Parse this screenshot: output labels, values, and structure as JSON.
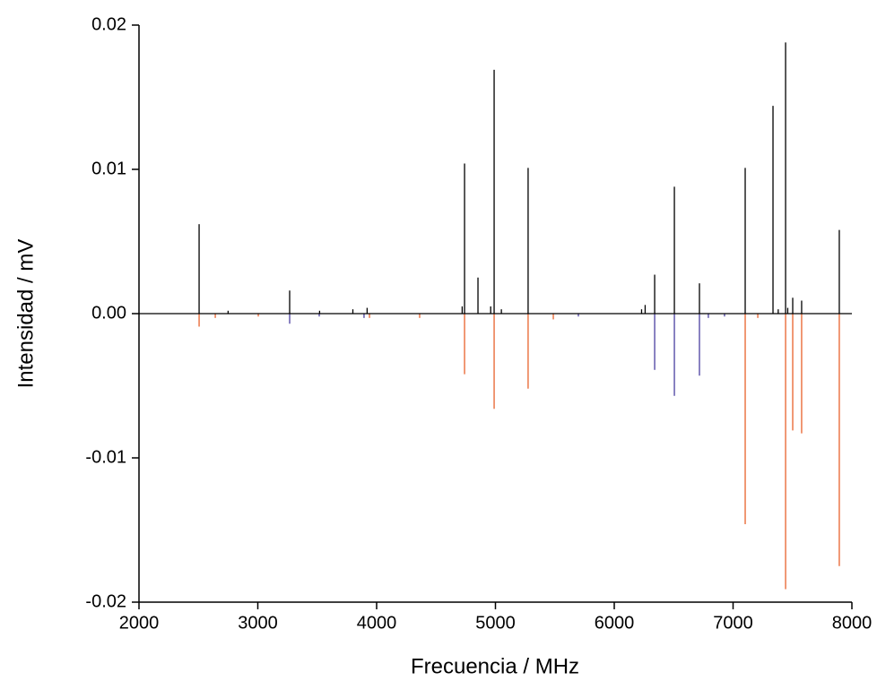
{
  "chart_data": {
    "type": "stick",
    "x_label": "Frecuencia / MHz",
    "y_label": "Intensidad / mV",
    "xlim": [
      2000,
      8000
    ],
    "xticks": [
      2000,
      3000,
      4000,
      5000,
      6000,
      7000,
      8000
    ],
    "ylim": [
      -0.02,
      0.02
    ],
    "yticks": [
      -0.02,
      -0.01,
      {
        "value": 0,
        "label": "0.00"
      },
      0.01,
      0.02
    ],
    "baseline": true,
    "series": [
      {
        "color": "#000000",
        "x": [
          2506,
          3268,
          4740,
          4853,
          4989,
          5275,
          6340,
          6506,
          6717,
          7102,
          7336,
          7442,
          7502,
          7577,
          7894,
          4720,
          4960,
          6260,
          2750,
          3520,
          3800,
          3920,
          5050,
          6230,
          7380,
          7460
        ],
        "values": [
          0.0062,
          0.0016,
          0.0104,
          0.0025,
          0.0169,
          0.0101,
          0.0027,
          0.0088,
          0.0021,
          0.0101,
          0.0144,
          0.0188,
          0.0011,
          0.0009,
          0.0058,
          0.0005,
          0.0005,
          0.0006,
          0.0002,
          0.0002,
          0.0003,
          0.0004,
          0.0003,
          0.0003,
          0.0003,
          0.0004
        ]
      },
      {
        "color": "#e8622c",
        "x": [
          2506,
          4740,
          4989,
          5275,
          7102,
          7442,
          7502,
          7577,
          7894,
          2642,
          3004,
          3940,
          4362,
          5487,
          7208
        ],
        "values": [
          -0.0009,
          -0.0042,
          -0.0066,
          -0.0052,
          -0.0146,
          -0.0191,
          -0.0081,
          -0.0083,
          -0.0175,
          -0.0003,
          -0.0002,
          -0.0003,
          -0.0003,
          -0.0004,
          -0.0003
        ]
      },
      {
        "color": "#4a3fa0",
        "x": [
          3268,
          6340,
          6506,
          6717,
          3517,
          3894,
          5698,
          6792,
          6928
        ],
        "values": [
          -0.0007,
          -0.0039,
          -0.0057,
          -0.0043,
          -0.0002,
          -0.0003,
          -0.0002,
          -0.0003,
          -0.0002
        ]
      }
    ]
  }
}
